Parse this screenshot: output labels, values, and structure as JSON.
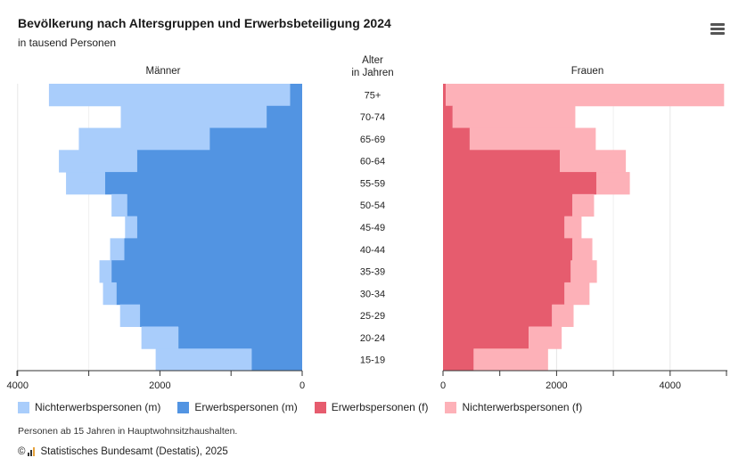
{
  "header": {
    "title": "Bevölkerung nach Altersgruppen und Erwerbsbeteiligung 2024",
    "subtitle": "in tausend Personen",
    "menu_icon": "hamburger-menu-icon"
  },
  "chart_data": {
    "type": "bar",
    "orientation": "horizontal-population-pyramid",
    "title": "Bevölkerung nach Altersgruppen und Erwerbsbeteiligung 2024",
    "unit": "in tausend Personen",
    "left_panel_label": "Männer",
    "right_panel_label": "Frauen",
    "center_label": "Alter\nin Jahren",
    "categories": [
      "75+",
      "70-74",
      "65-69",
      "60-64",
      "55-59",
      "50-54",
      "45-49",
      "40-44",
      "35-39",
      "30-34",
      "25-29",
      "20-24",
      "15-19"
    ],
    "xlim": [
      0,
      5000
    ],
    "left_ticks": [
      4000,
      2000,
      0
    ],
    "right_ticks": [
      0,
      2000,
      4000
    ],
    "series": [
      {
        "name": "Nichterwerbspersonen (m)",
        "side": "left",
        "color": "#a9cdfb",
        "values": [
          3390,
          2050,
          1840,
          1100,
          550,
          220,
          170,
          200,
          170,
          190,
          280,
          520,
          1350
        ]
      },
      {
        "name": "Erwerbspersonen (m)",
        "side": "left",
        "color": "#5294e2",
        "values": [
          170,
          500,
          1300,
          2320,
          2770,
          2460,
          2320,
          2500,
          2680,
          2610,
          2280,
          1740,
          710
        ]
      },
      {
        "name": "Erwerbspersonen (f)",
        "side": "right",
        "color": "#e65c6e",
        "values": [
          50,
          170,
          470,
          2060,
          2700,
          2280,
          2140,
          2280,
          2250,
          2140,
          1920,
          1510,
          540
        ]
      },
      {
        "name": "Nichterwerbspersonen (f)",
        "side": "right",
        "color": "#fdb1b8",
        "values": [
          4900,
          2160,
          2220,
          1160,
          590,
          380,
          300,
          350,
          460,
          440,
          380,
          580,
          1310
        ]
      }
    ]
  },
  "legend": [
    {
      "label": "Nichterwerbspersonen (m)",
      "color": "#a9cdfb"
    },
    {
      "label": "Erwerbspersonen (m)",
      "color": "#5294e2"
    },
    {
      "label": "Erwerbspersonen (f)",
      "color": "#e65c6e"
    },
    {
      "label": "Nichterwerbspersonen (f)",
      "color": "#fdb1b8"
    }
  ],
  "footnote": "Personen ab 15 Jahren in Hauptwohnsitzhaushalten.",
  "source": {
    "copyright": "©",
    "text": "Statistisches Bundesamt (Destatis), 2025"
  }
}
